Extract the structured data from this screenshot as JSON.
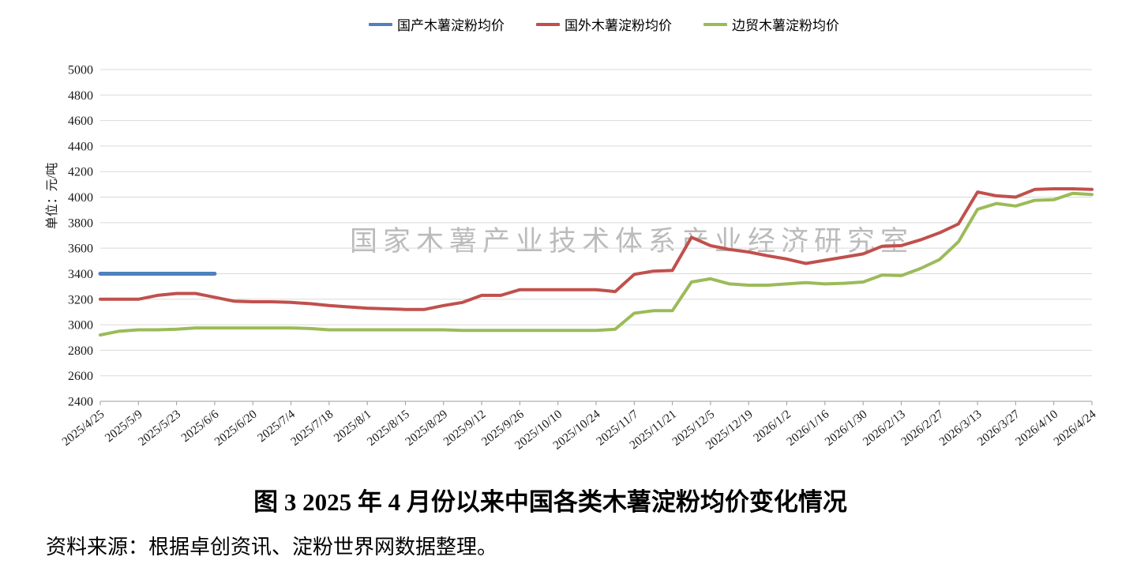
{
  "legend": {
    "items": [
      {
        "label": "国产木薯淀粉均价",
        "color": "#4f81bd"
      },
      {
        "label": "国外木薯淀粉均价",
        "color": "#c0504d"
      },
      {
        "label": "边贸木薯淀粉均价",
        "color": "#9bbb59"
      }
    ]
  },
  "watermark": {
    "text": "国家木薯产业技术体系产业经济研究室"
  },
  "caption": {
    "title": "图 3  2025 年 4 月份以来中国各类木薯淀粉均价变化情况",
    "source": "资料来源：根据卓创资讯、淀粉世界网数据整理。"
  },
  "chart_data": {
    "type": "line",
    "title": "",
    "xlabel": "",
    "ylabel": "单位：元/吨",
    "ylim": [
      2400,
      5000
    ],
    "ytick_step": 200,
    "xtick_every": 2,
    "grid": true,
    "legend_position": "top",
    "axis_color": "#9c9c9c",
    "grid_color": "#d9d9d9",
    "x": [
      "2025/4/25",
      "2025/5/2",
      "2025/5/9",
      "2025/5/16",
      "2025/5/23",
      "2025/5/30",
      "2025/6/6",
      "2025/6/13",
      "2025/6/20",
      "2025/6/27",
      "2025/7/4",
      "2025/7/11",
      "2025/7/18",
      "2025/7/25",
      "2025/8/1",
      "2025/8/8",
      "2025/8/15",
      "2025/8/22",
      "2025/8/29",
      "2025/9/5",
      "2025/9/12",
      "2025/9/19",
      "2025/9/26",
      "2025/10/3",
      "2025/10/10",
      "2025/10/17",
      "2025/10/24",
      "2025/10/31",
      "2025/11/7",
      "2025/11/14",
      "2025/11/21",
      "2025/11/28",
      "2025/12/5",
      "2025/12/12",
      "2025/12/19",
      "2025/12/26",
      "2026/1/2",
      "2026/1/9",
      "2026/1/16",
      "2026/1/23",
      "2026/1/30",
      "2026/2/6",
      "2026/2/13",
      "2026/2/20",
      "2026/2/27",
      "2026/3/6",
      "2026/3/13",
      "2026/3/20",
      "2026/3/27",
      "2026/4/3",
      "2026/4/10",
      "2026/4/17",
      "2026/4/24"
    ],
    "series": [
      {
        "name": "国产木薯淀粉均价",
        "color": "#4f81bd",
        "values": [
          3400,
          3400,
          3400,
          3400,
          3400,
          3400,
          3400,
          null,
          null,
          null,
          null,
          null,
          null,
          null,
          null,
          null,
          null,
          null,
          null,
          null,
          null,
          null,
          null,
          null,
          null,
          null,
          null,
          null,
          null,
          null,
          null,
          null,
          null,
          null,
          null,
          null,
          null,
          null,
          null,
          null,
          null,
          null,
          null,
          null,
          null,
          null,
          null,
          null,
          null,
          null,
          null,
          null,
          null
        ]
      },
      {
        "name": "国外木薯淀粉均价",
        "color": "#c0504d",
        "values": [
          3200,
          3200,
          3200,
          3230,
          3245,
          3245,
          3215,
          3185,
          3180,
          3180,
          3175,
          3165,
          3150,
          3140,
          3130,
          3125,
          3120,
          3120,
          3150,
          3175,
          3230,
          3230,
          3275,
          3275,
          3275,
          3275,
          3275,
          3260,
          3395,
          3420,
          3425,
          3685,
          3620,
          3590,
          3570,
          3540,
          3515,
          3480,
          3505,
          3530,
          3555,
          3615,
          3620,
          3665,
          3720,
          3790,
          4040,
          4010,
          4000,
          4060,
          4065,
          4065,
          4060
        ]
      },
      {
        "name": "边贸木薯淀粉均价",
        "color": "#9bbb59",
        "values": [
          2920,
          2950,
          2960,
          2960,
          2965,
          2975,
          2975,
          2975,
          2975,
          2975,
          2975,
          2970,
          2960,
          2960,
          2960,
          2960,
          2960,
          2960,
          2960,
          2955,
          2955,
          2955,
          2955,
          2955,
          2955,
          2955,
          2955,
          2965,
          3090,
          3110,
          3110,
          3335,
          3360,
          3320,
          3310,
          3310,
          3320,
          3330,
          3320,
          3325,
          3335,
          3390,
          3385,
          3440,
          3510,
          3650,
          3905,
          3950,
          3930,
          3975,
          3980,
          4030,
          4020
        ]
      }
    ]
  }
}
